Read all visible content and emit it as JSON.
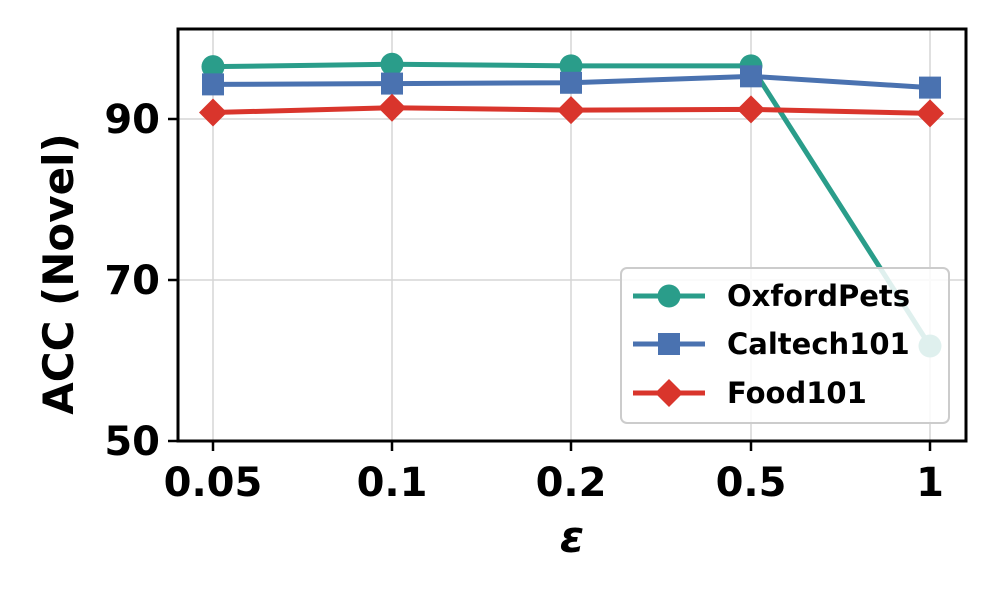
{
  "chart_data": {
    "type": "line",
    "categories": [
      "0.05",
      "0.1",
      "0.2",
      "0.5",
      "1"
    ],
    "xlabel": "ε",
    "ylabel": "ACC (Novel)",
    "yticks": [
      "50",
      "70",
      "90"
    ],
    "ylim": [
      50,
      100
    ],
    "grid": true,
    "legend_position": "bottom-right",
    "series": [
      {
        "name": "OxfordPets",
        "color": "#2a9d8a",
        "marker": "circle",
        "values": [
          96.5,
          96.8,
          96.6,
          96.6,
          61.8
        ]
      },
      {
        "name": "Caltech101",
        "color": "#4a72b0",
        "marker": "square",
        "values": [
          94.3,
          94.4,
          94.5,
          95.3,
          93.9
        ]
      },
      {
        "name": "Food101",
        "color": "#d9352c",
        "marker": "diamond",
        "values": [
          90.8,
          91.4,
          91.1,
          91.2,
          90.7
        ]
      }
    ]
  }
}
